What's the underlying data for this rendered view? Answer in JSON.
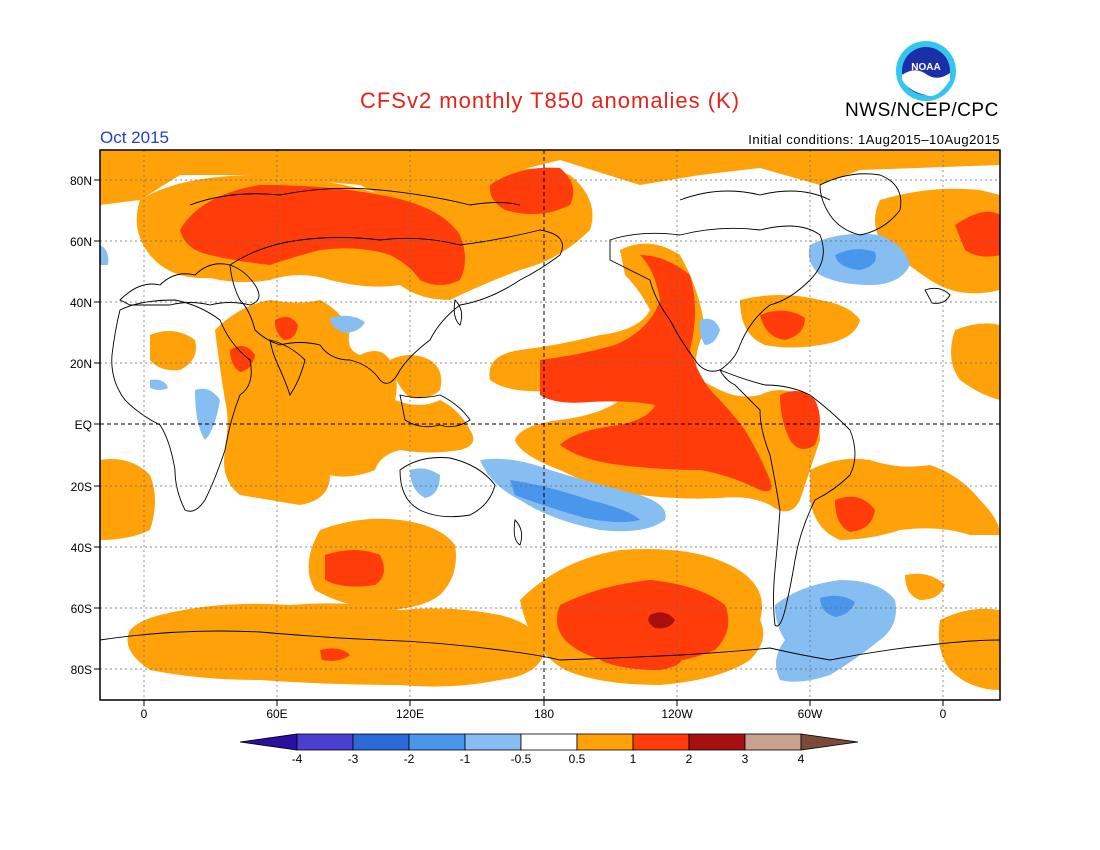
{
  "header": {
    "title": "CFSv2 monthly T850 anomalies (K)",
    "month": "Oct 2015",
    "initial_conditions": "Initial conditions: 1Aug2015–10Aug2015",
    "credit": "NWS/NCEP/CPC",
    "logo_text": "NOAA"
  },
  "map": {
    "y_axis_labels": [
      "80N",
      "60N",
      "40N",
      "20N",
      "EQ",
      "20S",
      "40S",
      "60S",
      "80S"
    ],
    "x_axis_labels": [
      "0",
      "60E",
      "120E",
      "180",
      "120W",
      "60W",
      "0"
    ]
  },
  "colorbar": {
    "labels": [
      "-4",
      "-3",
      "-2",
      "-1",
      "-0.5",
      "0.5",
      "1",
      "2",
      "3",
      "4"
    ],
    "colors": [
      "#2a0fa0",
      "#4b3fd0",
      "#2a6ad8",
      "#4a96ec",
      "#86bef2",
      "#ffffff",
      "#ffa20a",
      "#ff3c0a",
      "#a80f0f",
      "#c9a28f",
      "#7a4a3a"
    ]
  },
  "colors": {
    "title": "#e8201a",
    "month": "#2040d0",
    "warm_1": "#ffa20a",
    "warm_2": "#ff3c0a",
    "warm_3": "#a80f0f",
    "cool_1": "#86bef2",
    "cool_2": "#4a96ec"
  }
}
